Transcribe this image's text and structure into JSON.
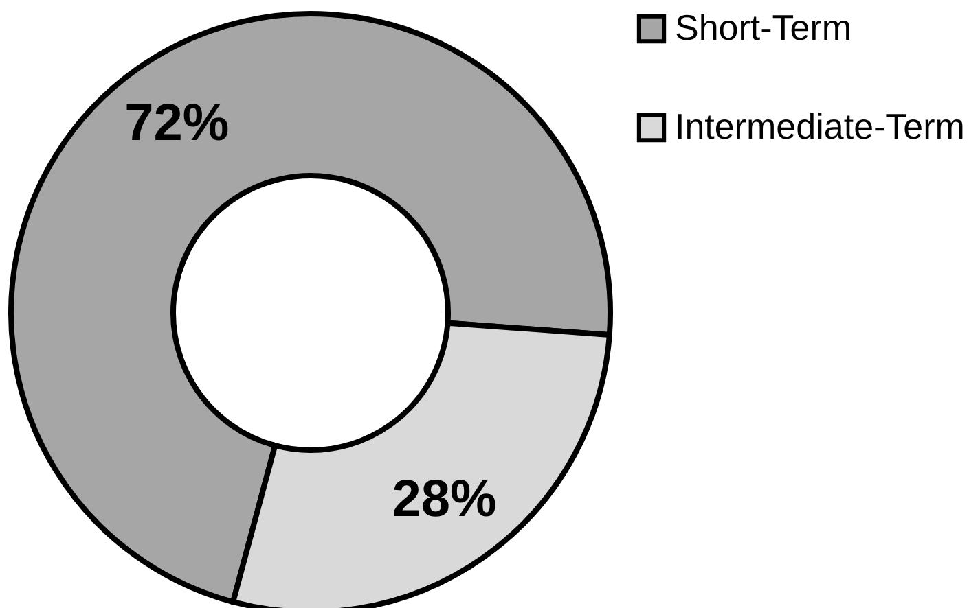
{
  "chart_data": {
    "type": "donut",
    "categories": [
      "Short-Term",
      "Intermediate-Term"
    ],
    "values": [
      72,
      28
    ],
    "colors": [
      "#a6a6a6",
      "#d9d9d9"
    ],
    "value_labels": [
      "72%",
      "28%"
    ],
    "legend": "right"
  }
}
